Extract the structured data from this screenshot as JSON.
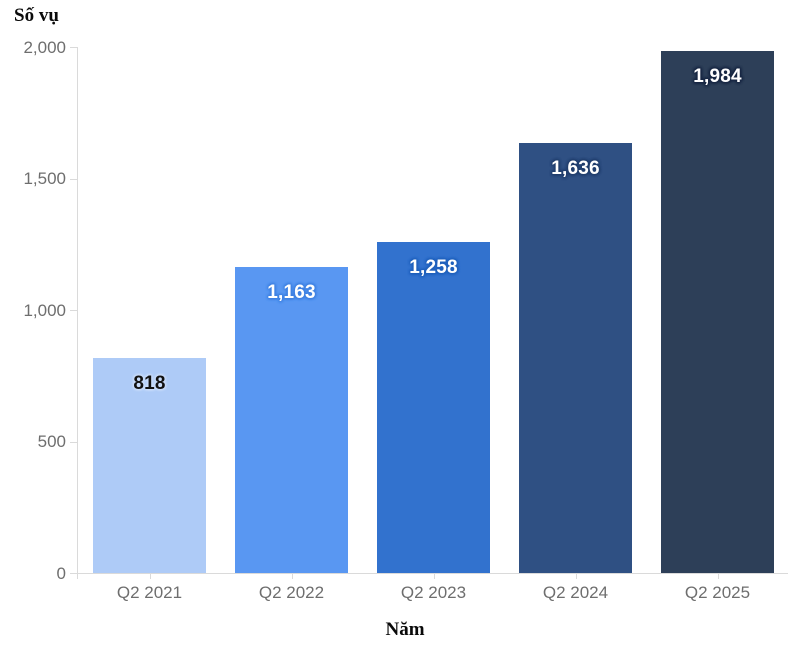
{
  "chart_data": {
    "type": "bar",
    "title": "Số vụ",
    "ylabel": "Số vụ",
    "xlabel": "Năm",
    "categories": [
      "Q2 2021",
      "Q2 2022",
      "Q2 2023",
      "Q2 2024",
      "Q2 2025"
    ],
    "values": [
      818,
      1163,
      1258,
      1636,
      1984
    ],
    "value_labels": [
      "818",
      "1,163",
      "1,258",
      "1,636",
      "1,984"
    ],
    "bar_colors": [
      "#aecbf7",
      "#5997f2",
      "#3272ce",
      "#2f5083",
      "#2d3f58"
    ],
    "value_label_text_colors": [
      "#111111",
      "#ffffff",
      "#ffffff",
      "#ffffff",
      "#ffffff"
    ],
    "value_label_halo_colors": [
      "#c9dcfa",
      "#3f81e2",
      "#2061bc",
      "#223f6d",
      "#182743"
    ],
    "ylim": [
      0,
      2000
    ],
    "yticks": [
      0,
      500,
      1000,
      1500,
      2000
    ],
    "ytick_labels": [
      "0",
      "500",
      "1,000",
      "1,500",
      "2,000"
    ],
    "legend": "none",
    "grid": "off",
    "axis_color": "#dadada",
    "tick_label_color": "#6e6e6e"
  }
}
